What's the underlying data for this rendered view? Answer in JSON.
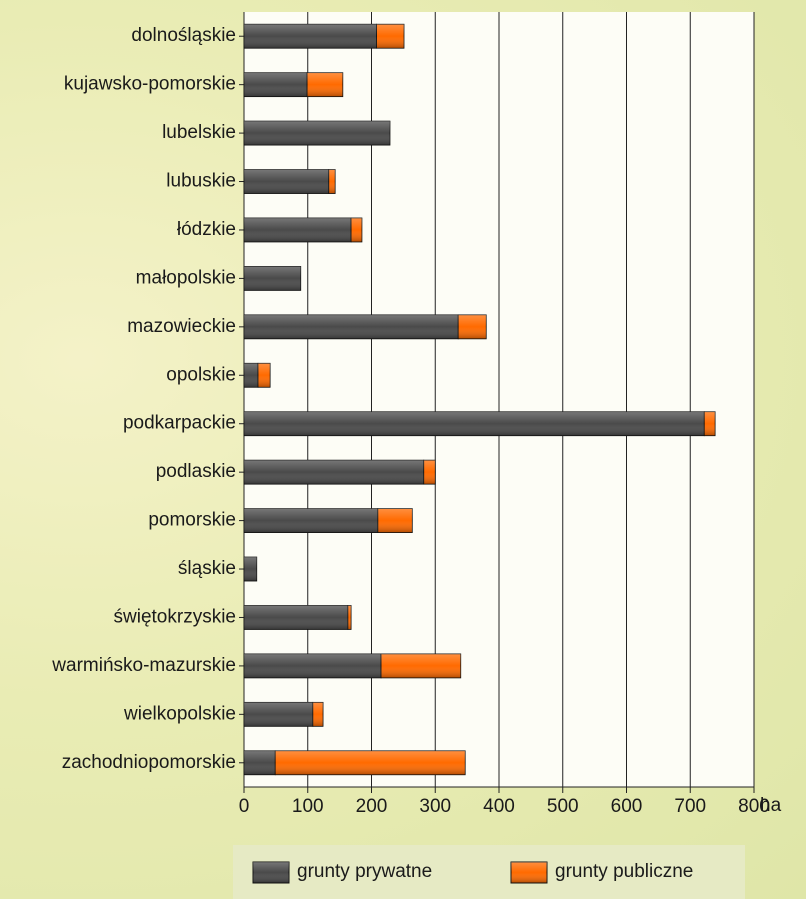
{
  "chart_data": {
    "type": "stacked-barh",
    "categories": [
      "dolnośląskie",
      "kujawsko-pomorskie",
      "lubelskie",
      "lubuskie",
      "łódzkie",
      "małopolskie",
      "mazowieckie",
      "opolskie",
      "podkarpackie",
      "podlaskie",
      "pomorskie",
      "śląskie",
      "świętokrzyskie",
      "warmińsko-mazurskie",
      "wielkopolskie",
      "zachodniopomorskie"
    ],
    "series": [
      {
        "name": "grunty prywatne",
        "color": "#4a4a4a",
        "values": [
          208,
          99,
          229,
          133,
          168,
          89,
          336,
          22,
          722,
          282,
          210,
          20,
          163,
          215,
          108,
          49
        ]
      },
      {
        "name": "grunty publiczne",
        "color": "#ff6a00",
        "values": [
          43,
          56,
          0,
          10,
          17,
          0,
          44,
          19,
          17,
          18,
          54,
          0,
          5,
          125,
          16,
          298
        ]
      }
    ],
    "xlabel": "ha",
    "xlim": [
      0,
      800
    ],
    "xticks": [
      0,
      100,
      200,
      300,
      400,
      500,
      600,
      700,
      800
    ],
    "grid": true
  }
}
